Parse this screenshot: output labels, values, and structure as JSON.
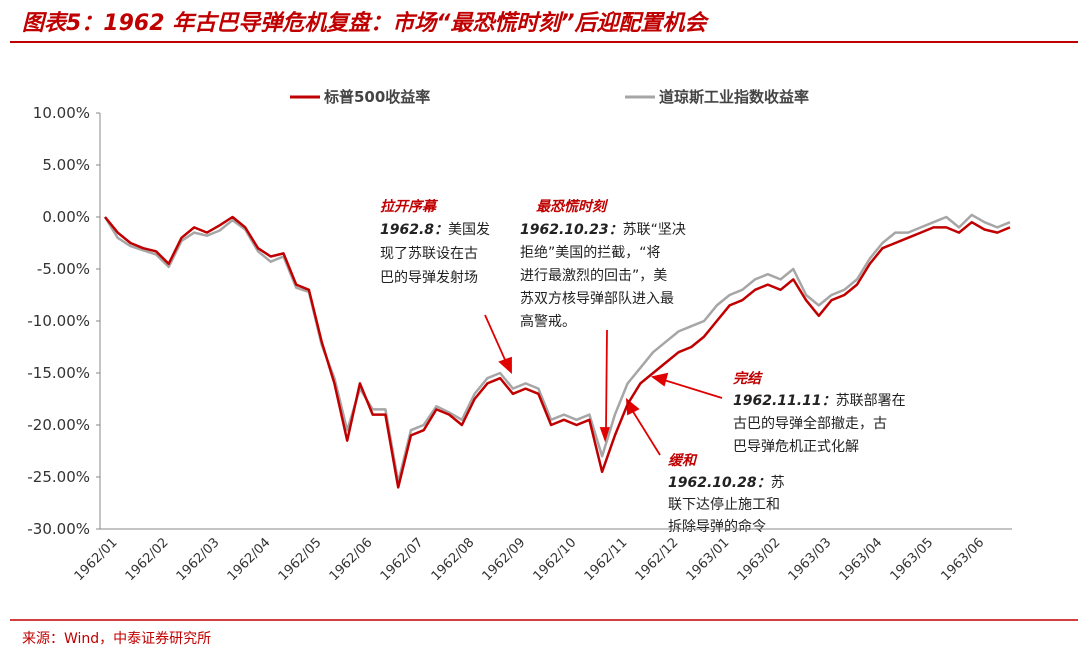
{
  "chart_data": {
    "type": "line",
    "title": "图表5：1962 年古巴导弹危机复盘：市场“最恐慌时刻”后迎配置机会",
    "source": "来源：Wind，中泰证券研究所",
    "x": [
      null,
      "1962/01",
      null,
      null,
      null,
      "1962/02",
      null,
      null,
      null,
      "1962/03",
      null,
      null,
      null,
      "1962/04",
      null,
      null,
      null,
      "1962/05",
      null,
      null,
      null,
      "1962/06",
      null,
      null,
      null,
      "1962/07",
      null,
      null,
      null,
      "1962/08",
      null,
      null,
      null,
      "1962/09",
      null,
      null,
      null,
      "1962/10",
      null,
      null,
      null,
      "1962/11",
      null,
      null,
      null,
      "1962/12",
      null,
      null,
      null,
      "1963/01",
      null,
      null,
      null,
      "1963/02",
      null,
      null,
      null,
      "1963/03",
      null,
      null,
      null,
      "1963/04",
      null,
      null,
      null,
      "1963/05",
      null,
      null,
      null,
      "1963/06",
      null,
      null
    ],
    "series": [
      {
        "name": "标普500收益率",
        "color": "#c00000",
        "values": [
          0,
          -1.5,
          -2.5,
          -3,
          -3.3,
          -4.5,
          -2,
          -1,
          -1.5,
          -0.8,
          0,
          -1,
          -3,
          -3.8,
          -3.5,
          -6.5,
          -7,
          -12,
          -16,
          -21.5,
          -16,
          -19,
          -19,
          -26,
          -21,
          -20.5,
          -18.5,
          -19,
          -20,
          -17.5,
          -16,
          -15.5,
          -17,
          -16.5,
          -17,
          -20,
          -19.5,
          -20,
          -19.5,
          -24.5,
          -21,
          -18,
          -16,
          -15,
          -14,
          -13,
          -12.5,
          -11.5,
          -10,
          -8.5,
          -8,
          -7,
          -6.5,
          -7,
          -6,
          -8,
          -9.5,
          -8,
          -7.5,
          -6.5,
          -4.5,
          -3,
          -2.5,
          -2,
          -1.5,
          -1,
          -1,
          -1.5,
          -0.5,
          -1.2,
          -1.5,
          -1
        ]
      },
      {
        "name": "道琼斯工业指数收益率",
        "color": "#a6a6a6",
        "values": [
          0,
          -2,
          -2.8,
          -3.2,
          -3.6,
          -4.8,
          -2.3,
          -1.5,
          -1.8,
          -1.3,
          -0.3,
          -1.2,
          -3.3,
          -4.3,
          -3.8,
          -6.8,
          -7.2,
          -12.3,
          -15.5,
          -20.5,
          -16.5,
          -18.5,
          -18.5,
          -25.5,
          -20.5,
          -20,
          -18.2,
          -18.8,
          -19.5,
          -17,
          -15.5,
          -15,
          -16.5,
          -16,
          -16.5,
          -19.5,
          -19,
          -19.5,
          -19,
          -23,
          -19,
          -16,
          -14.5,
          -13,
          -12,
          -11,
          -10.5,
          -10,
          -8.5,
          -7.5,
          -7,
          -6,
          -5.5,
          -6,
          -5,
          -7.5,
          -8.5,
          -7.5,
          -7,
          -6,
          -4,
          -2.5,
          -1.5,
          -1.5,
          -1,
          -0.5,
          0,
          -1,
          0.2,
          -0.5,
          -1,
          -0.5
        ]
      }
    ],
    "ylim": [
      -30,
      10
    ],
    "yticks": [
      {
        "value": -30,
        "label": "-30.00%"
      },
      {
        "value": -25,
        "label": "-25.00%"
      },
      {
        "value": -20,
        "label": "-20.00%"
      },
      {
        "value": -15,
        "label": "-15.00%"
      },
      {
        "value": -10,
        "label": "-10.00%"
      },
      {
        "value": -5,
        "label": "-5.00%"
      },
      {
        "value": 0,
        "label": "0.00%"
      },
      {
        "value": 5,
        "label": "5.00%"
      },
      {
        "value": 10,
        "label": "10.00%"
      }
    ],
    "grid": false,
    "legend": "top",
    "annotations": [
      {
        "title": "拉开序幕",
        "date": "1962.8：",
        "lines": [
          "美国发",
          "现了苏联设在古",
          "巴的导弹发射场"
        ]
      },
      {
        "title": "最恐慌时刻",
        "date": "1962.10.23：",
        "lines": [
          "苏联“坚决",
          "拒绝”美国的拦截，“将",
          "进行最激烈的回击”，美",
          "苏双方核导弹部队进入最",
          "高警戒。"
        ]
      },
      {
        "title": "完结",
        "date": "1962.11.11：",
        "lines": [
          "苏联部署在",
          "古巴的导弹全部撤走，古",
          "巴导弹危机正式化解"
        ]
      },
      {
        "title": "缓和",
        "date": "1962.10.28：",
        "lines": [
          "苏",
          "联下达停止施工和",
          "拆除导弹的命令"
        ]
      }
    ]
  }
}
